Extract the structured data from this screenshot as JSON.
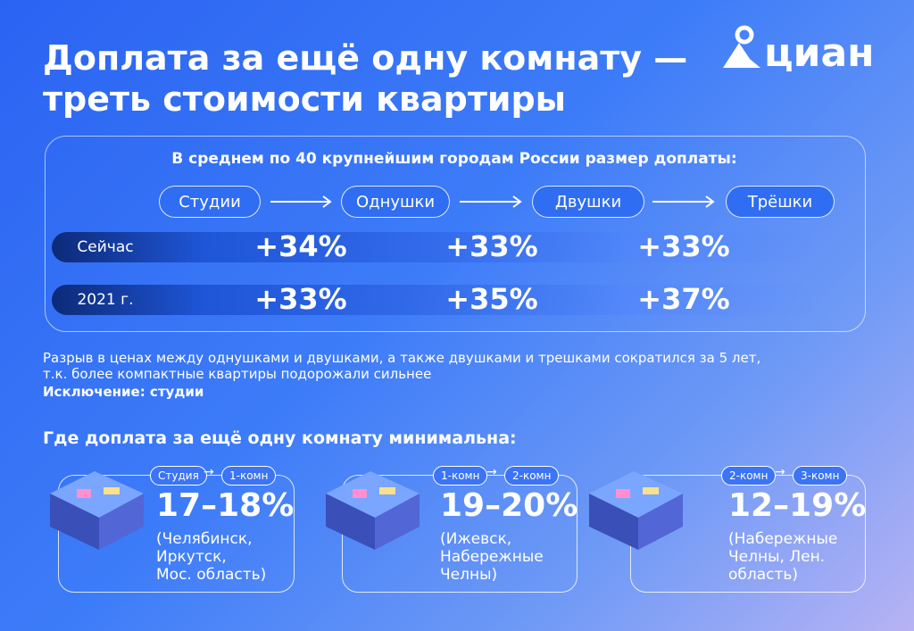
{
  "header": {
    "title": [
      "Доплата за ещё одну комнату —",
      "треть стоимости квартиры"
    ],
    "logo": "циан"
  },
  "panel": {
    "caption": "В среднем по 40 крупнейшим городам России размер доплаты:",
    "steps": [
      "Студии",
      "Однушки",
      "Двушки",
      "Трёшки"
    ],
    "rows": [
      {
        "label": "Сейчас",
        "values": [
          "+34%",
          "+33%",
          "+33%"
        ]
      },
      {
        "label": "2021 г.",
        "values": [
          "+33%",
          "+35%",
          "+37%"
        ]
      }
    ]
  },
  "note": {
    "lines": [
      "Разрыв в ценах между однушками и двушками, а также двушками и трешками сократился за 5 лет,",
      "т.к. более компактные квартиры подорожали сильнее"
    ],
    "exception": "Исключение: студии"
  },
  "section": {
    "title": "Где доплата за ещё одну комнату минимальна:",
    "cards": [
      {
        "from": "Студия",
        "to": "1-комн",
        "range": "17–18%",
        "places": [
          "(Челябинск,",
          "Иркутск,",
          "Мос. область)"
        ]
      },
      {
        "from": "1-комн",
        "to": "2-комн",
        "range": "19–20%",
        "places": [
          "(Ижевск,",
          "Набережные",
          "Челны)"
        ]
      },
      {
        "from": "2-комн",
        "to": "3-комн",
        "range": "12–19%",
        "places": [
          "(Набережные",
          "Челны, Лен.",
          "область)"
        ]
      }
    ]
  }
}
